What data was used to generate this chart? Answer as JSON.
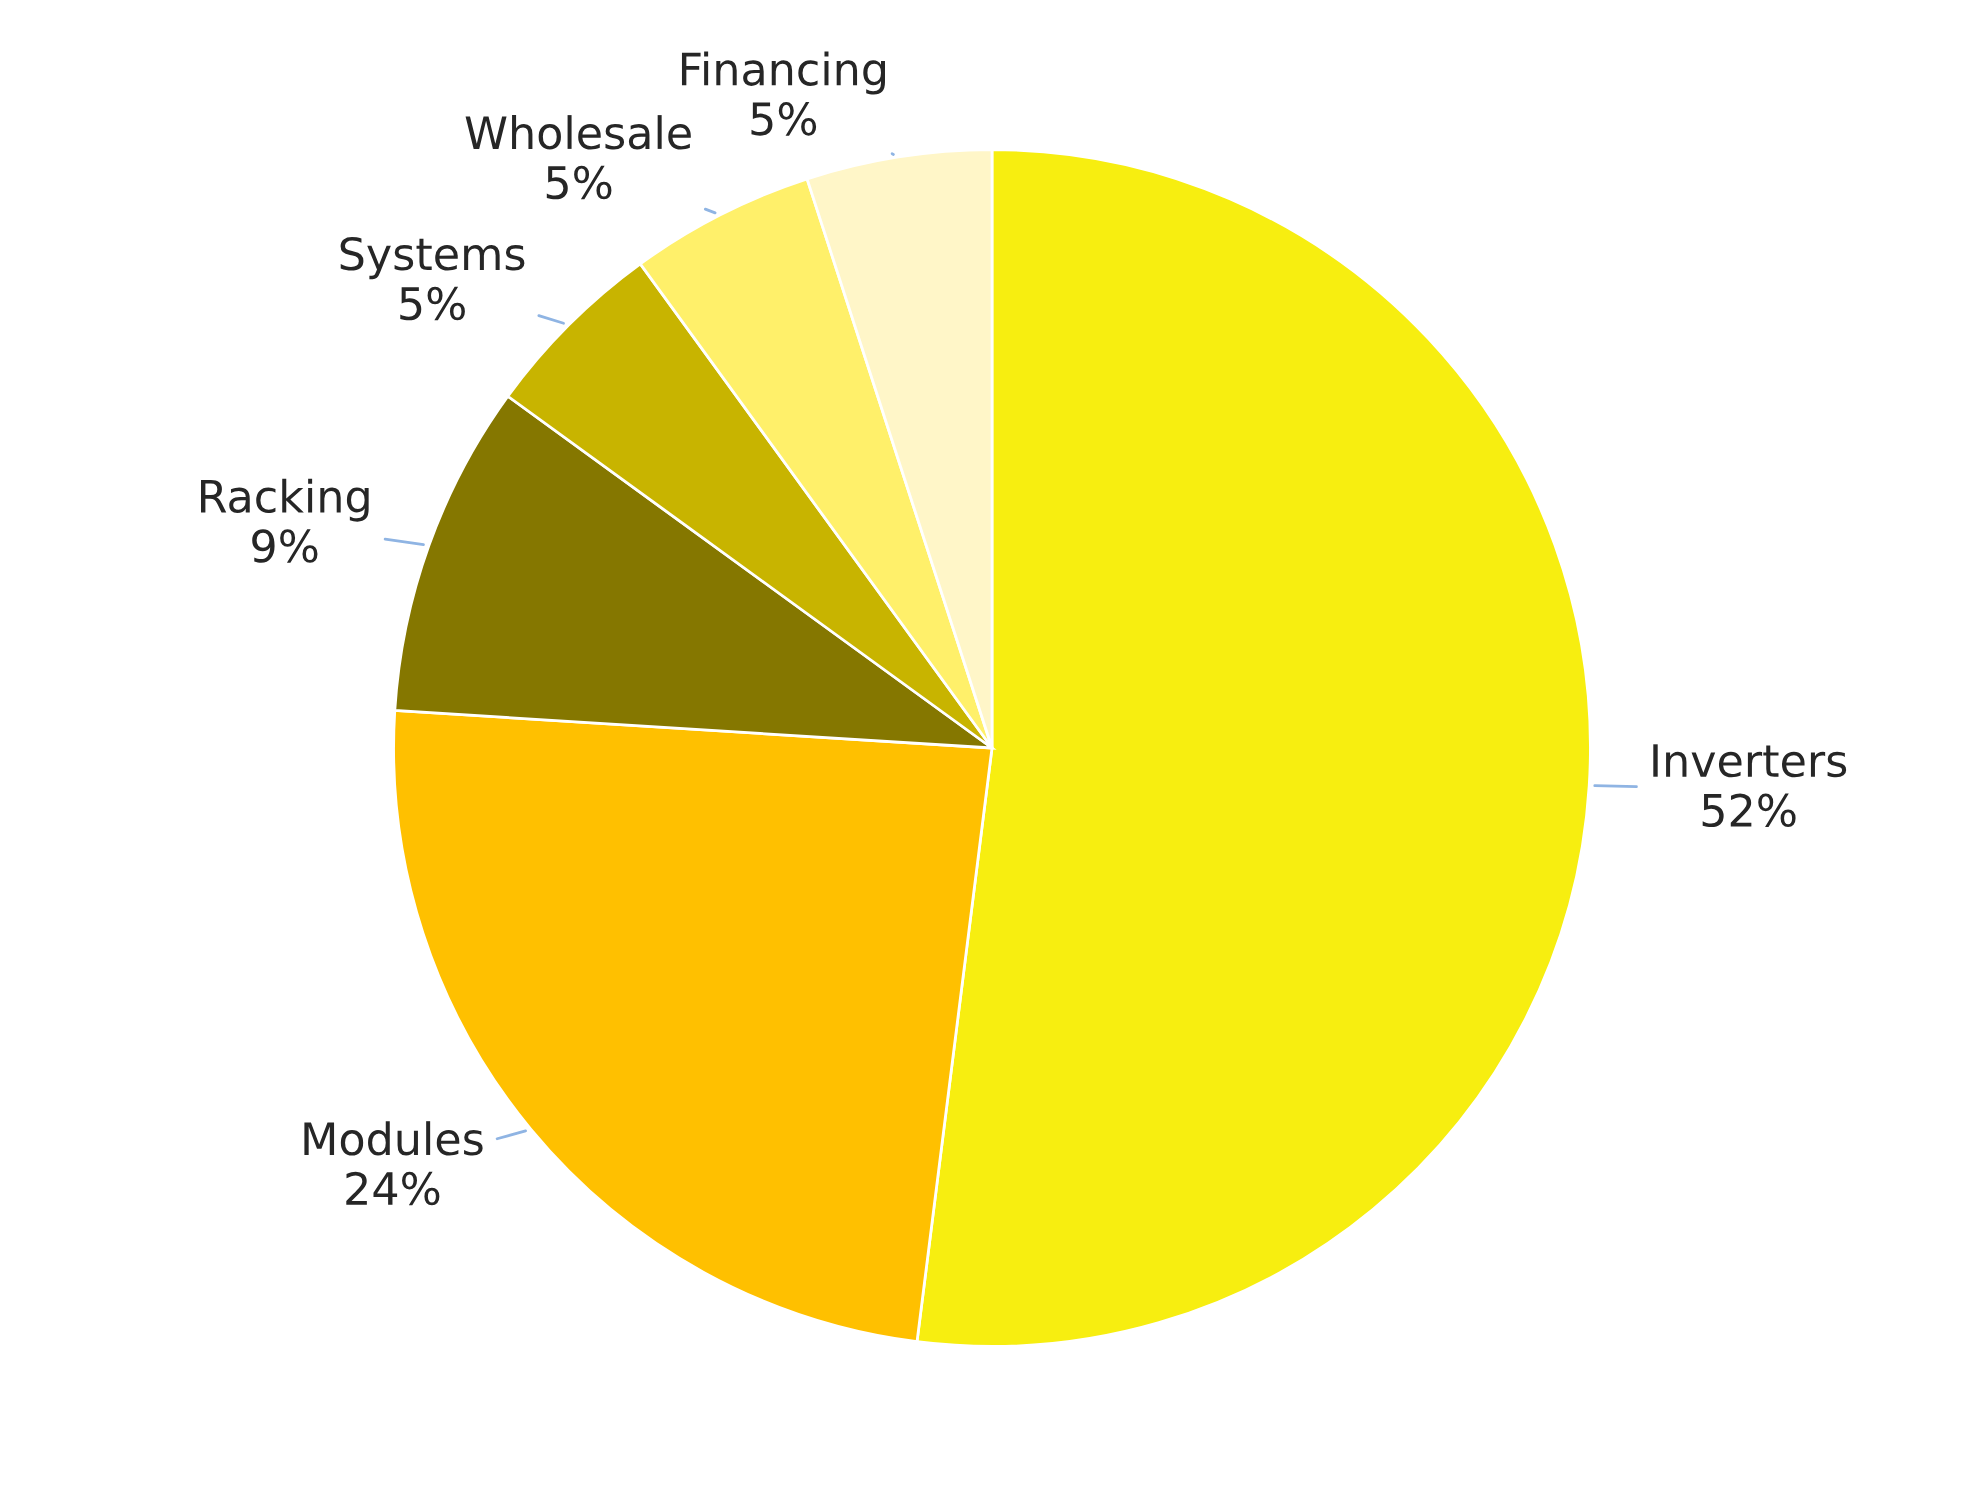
{
  "chart_data": {
    "type": "pie",
    "categories": [
      "Inverters",
      "Modules",
      "Racking",
      "Systems",
      "Wholesale",
      "Financing"
    ],
    "values": [
      52,
      24,
      9,
      5,
      5,
      5
    ],
    "value_labels": [
      "52%",
      "24%",
      "9%",
      "5%",
      "5%",
      "5%"
    ],
    "colors": [
      "#f7ee10",
      "#ffc000",
      "#857700",
      "#c8b400",
      "#fff06a",
      "#fff6c8"
    ]
  }
}
